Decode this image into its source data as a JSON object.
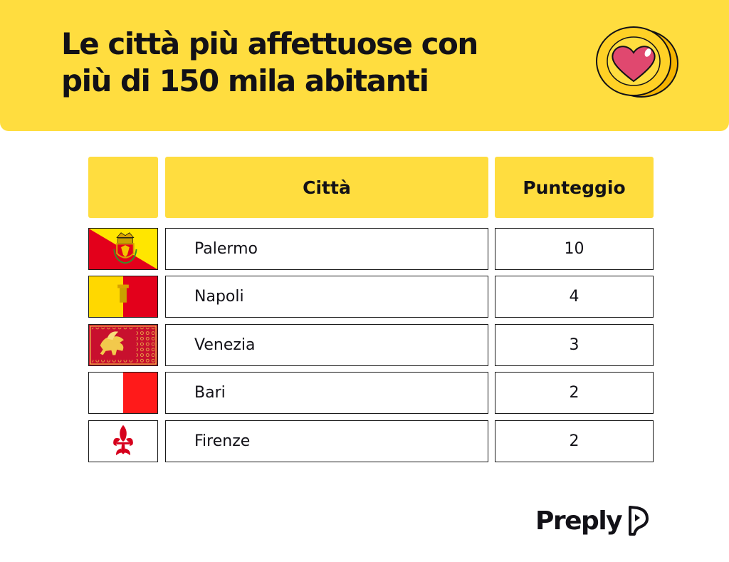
{
  "header": {
    "title_line1": "Le città più affettuose con",
    "title_line2": "più di 150 mila abitanti",
    "icon": "heart-coin-icon"
  },
  "table": {
    "columns": [
      "",
      "Città",
      "Punteggio"
    ],
    "rows": [
      {
        "flag": "palermo-flag",
        "city": "Palermo",
        "score": "10"
      },
      {
        "flag": "napoli-flag",
        "city": "Napoli",
        "score": "4"
      },
      {
        "flag": "venezia-flag",
        "city": "Venezia",
        "score": "3"
      },
      {
        "flag": "bari-flag",
        "city": "Bari",
        "score": "2"
      },
      {
        "flag": "firenze-flag",
        "city": "Firenze",
        "score": "2"
      }
    ]
  },
  "brand": {
    "name": "Preply",
    "icon": "preply-logo-icon"
  },
  "colors": {
    "accent": "#ffdd3f",
    "text": "#121117",
    "heart": "#e0486f"
  }
}
